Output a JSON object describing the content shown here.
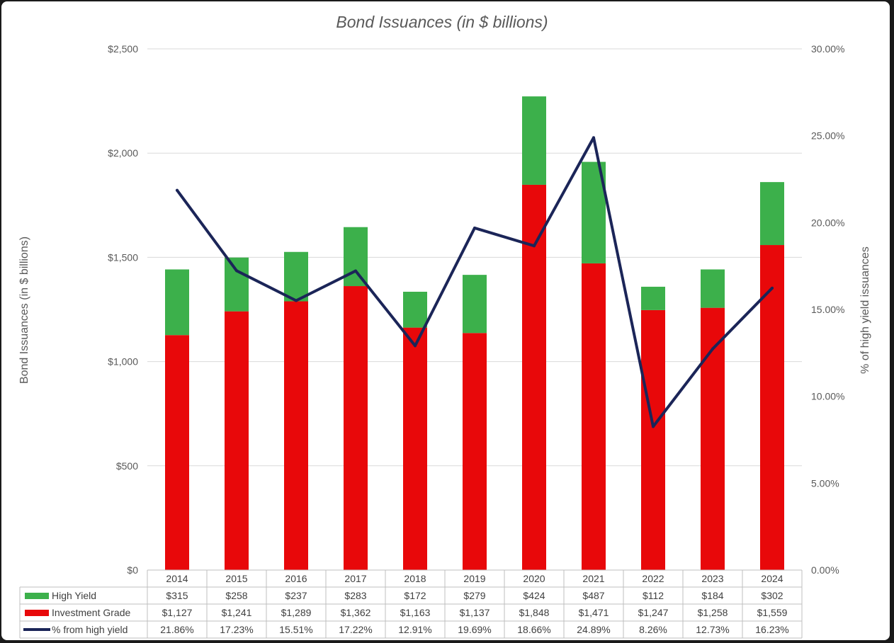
{
  "chart_data": {
    "type": "bar",
    "stacked": true,
    "title": "Bond Issuances (in $ billions)",
    "ylabel": "Bond Issuances (in $ billions)",
    "y2label": "% of high yield issuances",
    "ylim": [
      0,
      2500
    ],
    "y2lim": [
      0,
      30
    ],
    "yticks": [
      "$0",
      "$500",
      "$1,000",
      "$1,500",
      "$2,000",
      "$2,500"
    ],
    "y2ticks": [
      "0.00%",
      "5.00%",
      "10.00%",
      "15.00%",
      "20.00%",
      "25.00%",
      "30.00%"
    ],
    "categories": [
      "2014",
      "2015",
      "2016",
      "2017",
      "2018",
      "2019",
      "2020",
      "2021",
      "2022",
      "2023",
      "2024"
    ],
    "grid": true,
    "legend": "data-table-bottom",
    "series": [
      {
        "name": "High Yield",
        "kind": "bar",
        "color": "#3cb04b",
        "values": [
          315,
          258,
          237,
          283,
          172,
          279,
          424,
          487,
          112,
          184,
          302
        ],
        "labels": [
          "$315",
          "$258",
          "$237",
          "$283",
          "$172",
          "$279",
          "$424",
          "$487",
          "$112",
          "$184",
          "$302"
        ]
      },
      {
        "name": "Investment Grade",
        "kind": "bar",
        "color": "#e8080a",
        "values": [
          1127,
          1241,
          1289,
          1362,
          1163,
          1137,
          1848,
          1471,
          1247,
          1258,
          1559
        ],
        "labels": [
          "$1,127",
          "$1,241",
          "$1,289",
          "$1,362",
          "$1,163",
          "$1,137",
          "$1,848",
          "$1,471",
          "$1,247",
          "$1,258",
          "$1,559"
        ]
      },
      {
        "name": "% from high yield",
        "kind": "line",
        "axis": "secondary",
        "color": "#1b2558",
        "values": [
          21.86,
          17.23,
          15.51,
          17.22,
          12.91,
          19.69,
          18.66,
          24.89,
          8.26,
          12.73,
          16.23
        ],
        "labels": [
          "21.86%",
          "17.23%",
          "15.51%",
          "17.22%",
          "12.91%",
          "19.69%",
          "18.66%",
          "24.89%",
          "8.26%",
          "12.73%",
          "16.23%"
        ]
      }
    ]
  }
}
